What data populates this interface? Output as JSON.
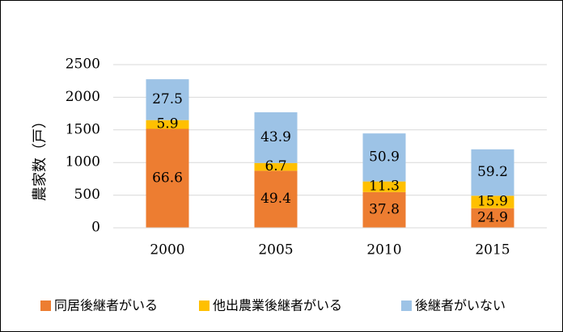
{
  "chart_data": {
    "type": "bar",
    "stacked": true,
    "title": "",
    "xlabel": "",
    "ylabel": "農家数（戸）",
    "categories": [
      "2000",
      "2005",
      "2010",
      "2015"
    ],
    "ylim": [
      0,
      2500
    ],
    "yticks": [
      "0",
      "500",
      "1000",
      "1500",
      "2000",
      "2500"
    ],
    "grid": true,
    "legend_position": "bottom",
    "series": [
      {
        "name": "同居後継者がいる",
        "color": "#ED7D31",
        "values": [
          1516,
          874,
          547,
          300
        ],
        "labels": [
          "66.6",
          "49.4",
          "37.8",
          "24.9"
        ]
      },
      {
        "name": "他出農業後継者がいる",
        "color": "#FFC000",
        "values": [
          134,
          119,
          163,
          191
        ],
        "labels": [
          "5.9",
          "6.7",
          "11.3",
          "15.9"
        ]
      },
      {
        "name": "後継者がいない",
        "color": "#9DC3E6",
        "values": [
          626,
          777,
          736,
          711
        ],
        "labels": [
          "27.5",
          "43.9",
          "50.9",
          "59.2"
        ]
      }
    ]
  }
}
